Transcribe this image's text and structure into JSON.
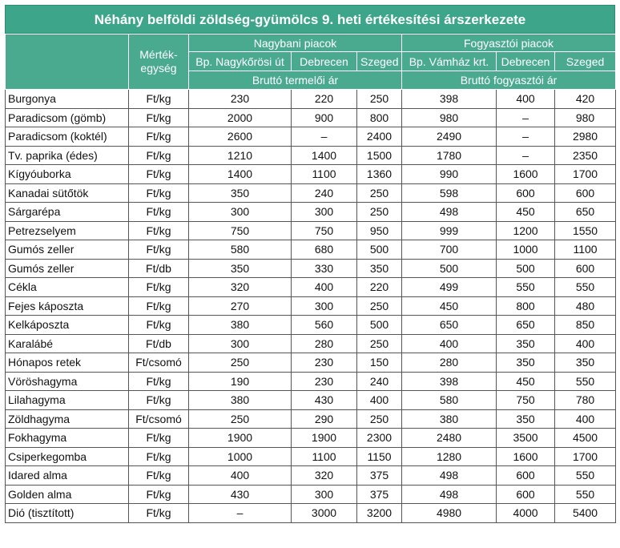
{
  "title": "Néhány belföldi zöldség-gyümölcs 9. heti értékesítési árszerkezete",
  "headers": {
    "unit": "Mérték-egység",
    "wholesale": "Nagybani piacok",
    "consumer": "Fogyasztói piacok",
    "markets": [
      "Bp. Nagykőrösi út",
      "Debrecen",
      "Szeged",
      "Bp. Vámház krt.",
      "Debrecen",
      "Szeged"
    ],
    "wholesale_price": "Bruttó termelői ár",
    "consumer_price": "Bruttó fogyasztói ár"
  },
  "rows": [
    [
      "Burgonya",
      "Ft/kg",
      "230",
      "220",
      "250",
      "398",
      "400",
      "420"
    ],
    [
      "Paradicsom (gömb)",
      "Ft/kg",
      "2000",
      "900",
      "800",
      "980",
      "–",
      "980"
    ],
    [
      "Paradicsom (koktél)",
      "Ft/kg",
      "2600",
      "–",
      "2400",
      "2490",
      "–",
      "2980"
    ],
    [
      "Tv. paprika (édes)",
      "Ft/kg",
      "1210",
      "1400",
      "1500",
      "1780",
      "–",
      "2350"
    ],
    [
      "Kígyóuborka",
      "Ft/kg",
      "1400",
      "1100",
      "1360",
      "990",
      "1600",
      "1700"
    ],
    [
      "Kanadai sütőtök",
      "Ft/kg",
      "350",
      "240",
      "250",
      "598",
      "600",
      "600"
    ],
    [
      "Sárgarépa",
      "Ft/kg",
      "300",
      "300",
      "250",
      "498",
      "450",
      "650"
    ],
    [
      "Petrezselyem",
      "Ft/kg",
      "750",
      "750",
      "950",
      "999",
      "1200",
      "1550"
    ],
    [
      "Gumós zeller",
      "Ft/kg",
      "580",
      "680",
      "500",
      "700",
      "1000",
      "1100"
    ],
    [
      "Gumós zeller",
      "Ft/db",
      "350",
      "330",
      "350",
      "500",
      "500",
      "600"
    ],
    [
      "Cékla",
      "Ft/kg",
      "320",
      "400",
      "220",
      "499",
      "550",
      "550"
    ],
    [
      "Fejes káposzta",
      "Ft/kg",
      "270",
      "300",
      "250",
      "450",
      "800",
      "480"
    ],
    [
      "Kelkáposzta",
      "Ft/kg",
      "380",
      "560",
      "500",
      "650",
      "650",
      "850"
    ],
    [
      "Karalábé",
      "Ft/db",
      "300",
      "280",
      "250",
      "400",
      "350",
      "400"
    ],
    [
      "Hónapos retek",
      "Ft/csomó",
      "250",
      "230",
      "150",
      "280",
      "350",
      "350"
    ],
    [
      "Vöröshagyma",
      "Ft/kg",
      "190",
      "230",
      "240",
      "398",
      "450",
      "550"
    ],
    [
      "Lilahagyma",
      "Ft/kg",
      "380",
      "430",
      "400",
      "580",
      "750",
      "780"
    ],
    [
      "Zöldhagyma",
      "Ft/csomó",
      "250",
      "290",
      "250",
      "380",
      "350",
      "400"
    ],
    [
      "Fokhagyma",
      "Ft/kg",
      "1900",
      "1900",
      "2300",
      "2480",
      "3500",
      "4500"
    ],
    [
      "Csiperkegomba",
      "Ft/kg",
      "1000",
      "1100",
      "1150",
      "1280",
      "1600",
      "1700"
    ],
    [
      "Idared alma",
      "Ft/kg",
      "400",
      "320",
      "375",
      "498",
      "600",
      "550"
    ],
    [
      "Golden alma",
      "Ft/kg",
      "430",
      "300",
      "375",
      "498",
      "600",
      "550"
    ],
    [
      "Dió (tisztított)",
      "Ft/kg",
      "–",
      "3000",
      "3200",
      "4980",
      "4000",
      "5400"
    ]
  ]
}
